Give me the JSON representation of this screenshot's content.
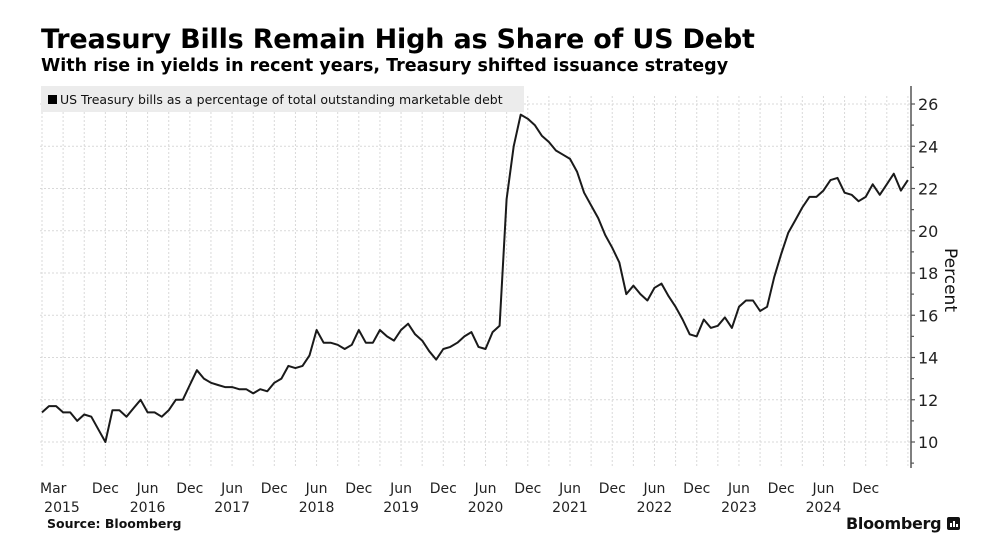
{
  "colors": {
    "line": "#1a1a1a",
    "grid": "#d9d9d9",
    "axis": "#555555",
    "legend_bg": "#ececec"
  },
  "footer": {
    "source": "Source: Bloomberg",
    "brand": "Bloomberg",
    "brand_icon": "bloomberg-chart-icon"
  },
  "chart_data": {
    "type": "line",
    "title": "Treasury Bills Remain High as Share of US Debt",
    "subtitle": "With rise in yields in recent years, Treasury shifted issuance strategy",
    "legend": [
      "US Treasury bills as a percentage of total outstanding marketable debt"
    ],
    "legend_placement": "top-left",
    "ylabel": "Percent",
    "xlabel": "",
    "ylim": [
      8.7,
      27
    ],
    "y_ticks": [
      10,
      12,
      14,
      16,
      18,
      20,
      22,
      24,
      26
    ],
    "y_axis_side": "right",
    "grid": true,
    "x_start": "2015-03",
    "x_ticks": [
      {
        "month": "2015-03",
        "label": "Mar",
        "year": "2015"
      },
      {
        "month": "2015-12",
        "label": "Dec",
        "year": ""
      },
      {
        "month": "2016-06",
        "label": "Jun",
        "year": "2016"
      },
      {
        "month": "2016-12",
        "label": "Dec",
        "year": ""
      },
      {
        "month": "2017-06",
        "label": "Jun",
        "year": "2017"
      },
      {
        "month": "2017-12",
        "label": "Dec",
        "year": ""
      },
      {
        "month": "2018-06",
        "label": "Jun",
        "year": "2018"
      },
      {
        "month": "2018-12",
        "label": "Dec",
        "year": ""
      },
      {
        "month": "2019-06",
        "label": "Jun",
        "year": "2019"
      },
      {
        "month": "2019-12",
        "label": "Dec",
        "year": ""
      },
      {
        "month": "2020-06",
        "label": "Jun",
        "year": "2020"
      },
      {
        "month": "2020-12",
        "label": "Dec",
        "year": ""
      },
      {
        "month": "2021-06",
        "label": "Jun",
        "year": "2021"
      },
      {
        "month": "2021-12",
        "label": "Dec",
        "year": ""
      },
      {
        "month": "2022-06",
        "label": "Jun",
        "year": "2022"
      },
      {
        "month": "2022-12",
        "label": "Dec",
        "year": ""
      },
      {
        "month": "2023-06",
        "label": "Jun",
        "year": "2023"
      },
      {
        "month": "2023-12",
        "label": "Dec",
        "year": ""
      },
      {
        "month": "2024-06",
        "label": "Jun",
        "year": "2024"
      },
      {
        "month": "2024-12",
        "label": "Dec",
        "year": ""
      }
    ],
    "series": [
      {
        "name": "US Treasury bills as a percentage of total outstanding marketable debt",
        "frequency": "monthly",
        "values": [
          11.4,
          11.7,
          11.7,
          11.4,
          11.4,
          11.0,
          11.3,
          11.2,
          10.6,
          10.0,
          11.5,
          11.5,
          11.2,
          11.6,
          12.0,
          11.4,
          11.4,
          11.2,
          11.5,
          12.0,
          12.0,
          12.7,
          13.4,
          13.0,
          12.8,
          12.7,
          12.6,
          12.6,
          12.5,
          12.5,
          12.3,
          12.5,
          12.4,
          12.8,
          13.0,
          13.6,
          13.5,
          13.6,
          14.1,
          15.3,
          14.7,
          14.7,
          14.6,
          14.4,
          14.6,
          15.3,
          14.7,
          14.7,
          15.3,
          15.0,
          14.8,
          15.3,
          15.6,
          15.1,
          14.8,
          14.3,
          13.9,
          14.4,
          14.5,
          14.7,
          15.0,
          15.2,
          14.5,
          14.4,
          15.2,
          15.5,
          21.5,
          24.0,
          25.5,
          25.3,
          25.0,
          24.5,
          24.2,
          23.8,
          23.6,
          23.4,
          22.8,
          21.8,
          21.2,
          20.6,
          19.8,
          19.2,
          18.5,
          17.0,
          17.4,
          17.0,
          16.7,
          17.3,
          17.5,
          16.9,
          16.4,
          15.8,
          15.1,
          15.0,
          15.8,
          15.4,
          15.5,
          15.9,
          15.4,
          16.4,
          16.7,
          16.7,
          16.2,
          16.4,
          17.8,
          18.9,
          19.9,
          20.5,
          21.1,
          21.6,
          21.6,
          21.9,
          22.4,
          22.5,
          21.8,
          21.7,
          21.4,
          21.6,
          22.2,
          21.7,
          22.2,
          22.7,
          21.9,
          22.4
        ]
      }
    ]
  }
}
